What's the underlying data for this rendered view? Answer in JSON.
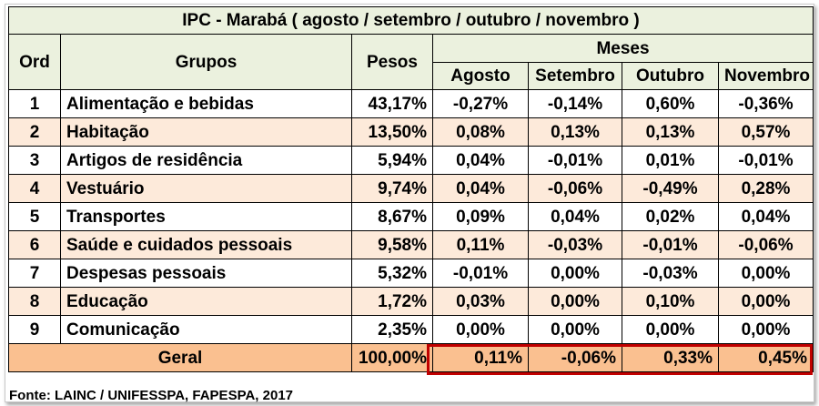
{
  "chart_data": {
    "type": "table",
    "title": "IPC - Marabá ( agosto / setembro / outubro / novembro )",
    "headers": {
      "ord": "Ord",
      "grupos": "Grupos",
      "pesos": "Pesos",
      "meses": "Meses",
      "months": [
        "Agosto",
        "Setembro",
        "Outubro",
        "Novembro"
      ]
    },
    "rows": [
      {
        "ord": "1",
        "grupo": "Alimentação e bebidas",
        "peso": "43,17%",
        "values": [
          "-0,27%",
          "-0,14%",
          "0,60%",
          "-0,36%"
        ]
      },
      {
        "ord": "2",
        "grupo": "Habitação",
        "peso": "13,50%",
        "values": [
          "0,08%",
          "0,13%",
          "0,13%",
          "0,57%"
        ]
      },
      {
        "ord": "3",
        "grupo": "Artigos de residência",
        "peso": "5,94%",
        "values": [
          "0,04%",
          "-0,01%",
          "0,01%",
          "-0,01%"
        ]
      },
      {
        "ord": "4",
        "grupo": "Vestuário",
        "peso": "9,74%",
        "values": [
          "0,04%",
          "-0,06%",
          "-0,49%",
          "0,28%"
        ]
      },
      {
        "ord": "5",
        "grupo": "Transportes",
        "peso": "8,67%",
        "values": [
          "0,09%",
          "0,04%",
          "0,02%",
          "0,04%"
        ]
      },
      {
        "ord": "6",
        "grupo": "Saúde e cuidados pessoais",
        "peso": "9,58%",
        "values": [
          "0,11%",
          "-0,03%",
          "-0,01%",
          "-0,06%"
        ]
      },
      {
        "ord": "7",
        "grupo": "Despesas pessoais",
        "peso": "5,32%",
        "values": [
          "-0,01%",
          "0,00%",
          "-0,03%",
          "0,00%"
        ]
      },
      {
        "ord": "8",
        "grupo": "Educação",
        "peso": "1,72%",
        "values": [
          "0,03%",
          "0,00%",
          "0,10%",
          "0,00%"
        ]
      },
      {
        "ord": "9",
        "grupo": "Comunicação",
        "peso": "2,35%",
        "values": [
          "0,00%",
          "0,00%",
          "0,00%",
          "0,00%"
        ]
      }
    ],
    "total": {
      "label": "Geral",
      "peso": "100,00%",
      "values": [
        "0,11%",
        "-0,06%",
        "0,33%",
        "0,45%"
      ]
    },
    "source": "Fonte: LAINC / UNIFESSPA, FAPESPA, 2017",
    "colors": {
      "header_bg": "#ebf1de",
      "row_alt_bg": "#fdeada",
      "total_bg": "#fac090",
      "highlight_border": "#c00000"
    }
  }
}
